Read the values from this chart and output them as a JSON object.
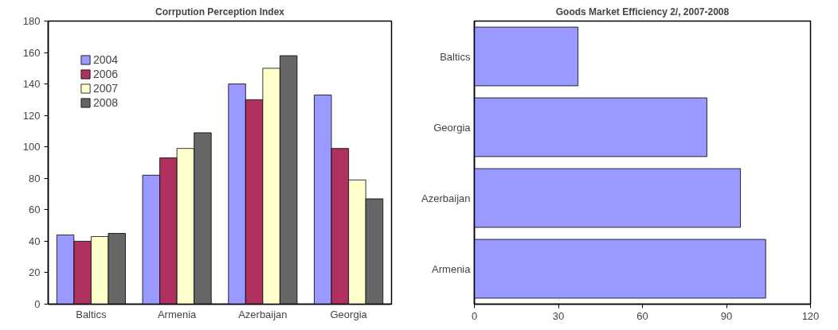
{
  "chart_data": [
    {
      "type": "bar",
      "title": "Corrpution Perception Index",
      "categories": [
        "Baltics",
        "Armenia",
        "Azerbaijan",
        "Georgia"
      ],
      "series": [
        {
          "name": "2004",
          "color": "#9999ff",
          "values": [
            44,
            82,
            140,
            133
          ]
        },
        {
          "name": "2006",
          "color": "#b03060",
          "values": [
            40,
            93,
            130,
            99
          ]
        },
        {
          "name": "2007",
          "color": "#ffffcc",
          "values": [
            43,
            99,
            150,
            79
          ]
        },
        {
          "name": "2008",
          "color": "#666666",
          "values": [
            45,
            109,
            158,
            67
          ]
        }
      ],
      "ylim": [
        0,
        180
      ],
      "yticks": [
        0,
        20,
        40,
        60,
        80,
        100,
        120,
        140,
        160,
        180
      ],
      "grid": false,
      "legend": "top left"
    },
    {
      "type": "bar",
      "orientation": "horizontal",
      "title": "Goods Market Efficiency 2/, 2007-2008",
      "categories": [
        "Baltics",
        "Georgia",
        "Azerbaijan",
        "Armenia"
      ],
      "values": [
        37,
        83,
        95,
        104
      ],
      "color": "#9999ff",
      "xlim": [
        0,
        120
      ],
      "xticks": [
        0,
        30,
        60,
        90,
        120
      ],
      "grid": false
    }
  ]
}
